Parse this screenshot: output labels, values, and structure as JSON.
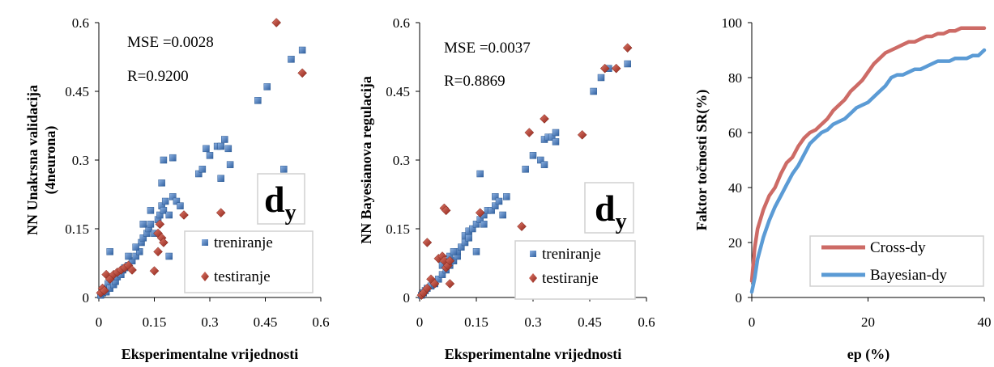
{
  "chart_data": [
    {
      "type": "scatter",
      "xlabel": "Eksperimentalne vrijednosti",
      "ylabel_line1": "NN Unakrsna validacija",
      "ylabel_line2": "(4neurona)",
      "xlim": [
        0,
        0.6
      ],
      "ylim": [
        0,
        0.6
      ],
      "xticks": [
        "0",
        "0.15",
        "0.3",
        "0.45",
        "0.6"
      ],
      "yticks": [
        "0",
        "0.15",
        "0.3",
        "0.45",
        "0.6"
      ],
      "annotations": {
        "mse": "MSE =0.0028",
        "r": "R=0.9200",
        "label_main": "d",
        "label_sub": "y"
      },
      "legend": {
        "position": "bottom-right",
        "entries": [
          "treniranje",
          "testiranje"
        ]
      },
      "series": [
        {
          "name": "treniranje",
          "marker": "square",
          "color": "#4a78b8",
          "points": [
            [
              0.005,
              0.005
            ],
            [
              0.01,
              0.01
            ],
            [
              0.015,
              0.02
            ],
            [
              0.02,
              0.012
            ],
            [
              0.025,
              0.03
            ],
            [
              0.03,
              0.02
            ],
            [
              0.035,
              0.04
            ],
            [
              0.04,
              0.028
            ],
            [
              0.045,
              0.035
            ],
            [
              0.05,
              0.045
            ],
            [
              0.055,
              0.055
            ],
            [
              0.06,
              0.05
            ],
            [
              0.065,
              0.06
            ],
            [
              0.07,
              0.065
            ],
            [
              0.08,
              0.07
            ],
            [
              0.09,
              0.08
            ],
            [
              0.1,
              0.09
            ],
            [
              0.11,
              0.1
            ],
            [
              0.115,
              0.12
            ],
            [
              0.12,
              0.13
            ],
            [
              0.13,
              0.14
            ],
            [
              0.135,
              0.15
            ],
            [
              0.14,
              0.16
            ],
            [
              0.15,
              0.14
            ],
            [
              0.16,
              0.17
            ],
            [
              0.165,
              0.18
            ],
            [
              0.17,
              0.2
            ],
            [
              0.175,
              0.19
            ],
            [
              0.18,
              0.21
            ],
            [
              0.19,
              0.09
            ],
            [
              0.2,
              0.22
            ],
            [
              0.21,
              0.21
            ],
            [
              0.22,
              0.2
            ],
            [
              0.17,
              0.25
            ],
            [
              0.175,
              0.3
            ],
            [
              0.2,
              0.305
            ],
            [
              0.27,
              0.27
            ],
            [
              0.28,
              0.28
            ],
            [
              0.29,
              0.325
            ],
            [
              0.3,
              0.31
            ],
            [
              0.32,
              0.33
            ],
            [
              0.33,
              0.33
            ],
            [
              0.34,
              0.345
            ],
            [
              0.35,
              0.325
            ],
            [
              0.355,
              0.29
            ],
            [
              0.33,
              0.26
            ],
            [
              0.03,
              0.1
            ],
            [
              0.43,
              0.43
            ],
            [
              0.455,
              0.46
            ],
            [
              0.5,
              0.28
            ],
            [
              0.52,
              0.52
            ],
            [
              0.55,
              0.54
            ],
            [
              0.12,
              0.16
            ],
            [
              0.14,
              0.19
            ],
            [
              0.1,
              0.11
            ],
            [
              0.08,
              0.09
            ],
            [
              0.19,
              0.18
            ]
          ]
        },
        {
          "name": "testiranje",
          "marker": "diamond",
          "color": "#c0392b",
          "points": [
            [
              0.005,
              0.01
            ],
            [
              0.01,
              0.02
            ],
            [
              0.015,
              0.015
            ],
            [
              0.02,
              0.05
            ],
            [
              0.03,
              0.04
            ],
            [
              0.04,
              0.05
            ],
            [
              0.05,
              0.055
            ],
            [
              0.06,
              0.06
            ],
            [
              0.07,
              0.065
            ],
            [
              0.08,
              0.07
            ],
            [
              0.09,
              0.06
            ],
            [
              0.15,
              0.058
            ],
            [
              0.16,
              0.1
            ],
            [
              0.16,
              0.14
            ],
            [
              0.165,
              0.16
            ],
            [
              0.17,
              0.13
            ],
            [
              0.175,
              0.12
            ],
            [
              0.23,
              0.18
            ],
            [
              0.33,
              0.185
            ],
            [
              0.48,
              0.6
            ],
            [
              0.55,
              0.49
            ]
          ]
        }
      ]
    },
    {
      "type": "scatter",
      "xlabel": "Eksperimentalne vrijednosti",
      "ylabel_line1": "NN Bayesianova regulacija",
      "xlim": [
        0,
        0.6
      ],
      "ylim": [
        0,
        0.6
      ],
      "xticks": [
        "0",
        "0.15",
        "0.3",
        "0.45",
        "0.6"
      ],
      "yticks": [
        "0",
        "0.15",
        "0.3",
        "0.45",
        "0.6"
      ],
      "annotations": {
        "mse": "MSE =0.0037",
        "r": "R=0.8869",
        "label_main": "d",
        "label_sub": "y"
      },
      "legend": {
        "position": "bottom-right",
        "entries": [
          "treniranje",
          "testiranje"
        ]
      },
      "series": [
        {
          "name": "treniranje",
          "marker": "square",
          "color": "#4a78b8",
          "points": [
            [
              0.005,
              0.005
            ],
            [
              0.01,
              0.01
            ],
            [
              0.015,
              0.015
            ],
            [
              0.02,
              0.02
            ],
            [
              0.03,
              0.025
            ],
            [
              0.04,
              0.03
            ],
            [
              0.05,
              0.04
            ],
            [
              0.06,
              0.05
            ],
            [
              0.07,
              0.06
            ],
            [
              0.08,
              0.07
            ],
            [
              0.09,
              0.08
            ],
            [
              0.1,
              0.09
            ],
            [
              0.1,
              0.1
            ],
            [
              0.11,
              0.11
            ],
            [
              0.12,
              0.12
            ],
            [
              0.12,
              0.135
            ],
            [
              0.13,
              0.13
            ],
            [
              0.13,
              0.145
            ],
            [
              0.14,
              0.15
            ],
            [
              0.15,
              0.1
            ],
            [
              0.15,
              0.16
            ],
            [
              0.16,
              0.17
            ],
            [
              0.17,
              0.18
            ],
            [
              0.17,
              0.16
            ],
            [
              0.18,
              0.19
            ],
            [
              0.19,
              0.19
            ],
            [
              0.2,
              0.2
            ],
            [
              0.2,
              0.22
            ],
            [
              0.21,
              0.21
            ],
            [
              0.22,
              0.18
            ],
            [
              0.23,
              0.22
            ],
            [
              0.16,
              0.27
            ],
            [
              0.28,
              0.28
            ],
            [
              0.3,
              0.31
            ],
            [
              0.32,
              0.3
            ],
            [
              0.33,
              0.29
            ],
            [
              0.33,
              0.345
            ],
            [
              0.34,
              0.35
            ],
            [
              0.35,
              0.35
            ],
            [
              0.36,
              0.36
            ],
            [
              0.36,
              0.34
            ],
            [
              0.46,
              0.45
            ],
            [
              0.48,
              0.48
            ],
            [
              0.5,
              0.5
            ],
            [
              0.55,
              0.51
            ],
            [
              0.08,
              0.09
            ],
            [
              0.09,
              0.1
            ],
            [
              0.06,
              0.07
            ]
          ]
        },
        {
          "name": "testiranje",
          "marker": "diamond",
          "color": "#c0392b",
          "points": [
            [
              0.005,
              0.005
            ],
            [
              0.01,
              0.01
            ],
            [
              0.02,
              0.02
            ],
            [
              0.02,
              0.12
            ],
            [
              0.03,
              0.04
            ],
            [
              0.04,
              0.03
            ],
            [
              0.05,
              0.085
            ],
            [
              0.06,
              0.09
            ],
            [
              0.065,
              0.08
            ],
            [
              0.065,
              0.195
            ],
            [
              0.07,
              0.19
            ],
            [
              0.07,
              0.065
            ],
            [
              0.075,
              0.07
            ],
            [
              0.08,
              0.08
            ],
            [
              0.08,
              0.03
            ],
            [
              0.16,
              0.185
            ],
            [
              0.27,
              0.155
            ],
            [
              0.29,
              0.36
            ],
            [
              0.33,
              0.39
            ],
            [
              0.43,
              0.355
            ],
            [
              0.49,
              0.5
            ],
            [
              0.52,
              0.5
            ],
            [
              0.55,
              0.545
            ]
          ]
        }
      ]
    },
    {
      "type": "line",
      "xlabel": "ep (%)",
      "ylabel": "Faktor točnosti SR(%)",
      "xlim": [
        0,
        40
      ],
      "ylim": [
        0,
        100
      ],
      "xticks": [
        "0",
        "20",
        "40"
      ],
      "yticks": [
        "0",
        "20",
        "40",
        "60",
        "80",
        "100"
      ],
      "legend": {
        "position": "bottom-right",
        "entries": [
          "Cross-dy",
          "Bayesian-dy"
        ]
      },
      "series": [
        {
          "name": "Cross-dy",
          "color": "#cd6b66",
          "x": [
            0,
            0.5,
            1,
            2,
            3,
            4,
            5,
            6,
            7,
            8,
            9,
            10,
            11,
            12,
            13,
            14,
            15,
            16,
            17,
            18,
            19,
            20,
            21,
            22,
            23,
            24,
            25,
            26,
            27,
            28,
            29,
            30,
            31,
            32,
            33,
            34,
            35,
            36,
            37,
            38,
            39,
            40
          ],
          "y": [
            6,
            18,
            25,
            32,
            37,
            40,
            45,
            49,
            51,
            55,
            58,
            60,
            61,
            63,
            65,
            68,
            70,
            72,
            75,
            77,
            79,
            82,
            85,
            87,
            89,
            90,
            91,
            92,
            93,
            93,
            94,
            95,
            95,
            96,
            96,
            97,
            97,
            98,
            98,
            98,
            98,
            98
          ]
        },
        {
          "name": "Bayesian-dy",
          "color": "#5b9bd5",
          "x": [
            0,
            0.5,
            1,
            2,
            3,
            4,
            5,
            6,
            7,
            8,
            9,
            10,
            11,
            12,
            13,
            14,
            15,
            16,
            17,
            18,
            19,
            20,
            21,
            22,
            23,
            24,
            25,
            26,
            27,
            28,
            29,
            30,
            31,
            32,
            33,
            34,
            35,
            36,
            37,
            38,
            39,
            40
          ],
          "y": [
            2,
            7,
            14,
            22,
            28,
            33,
            37,
            41,
            45,
            48,
            52,
            56,
            58,
            60,
            61,
            63,
            64,
            65,
            67,
            69,
            70,
            71,
            73,
            75,
            77,
            80,
            81,
            81,
            82,
            83,
            83,
            84,
            85,
            86,
            86,
            86,
            87,
            87,
            87,
            88,
            88,
            90
          ]
        }
      ]
    }
  ]
}
